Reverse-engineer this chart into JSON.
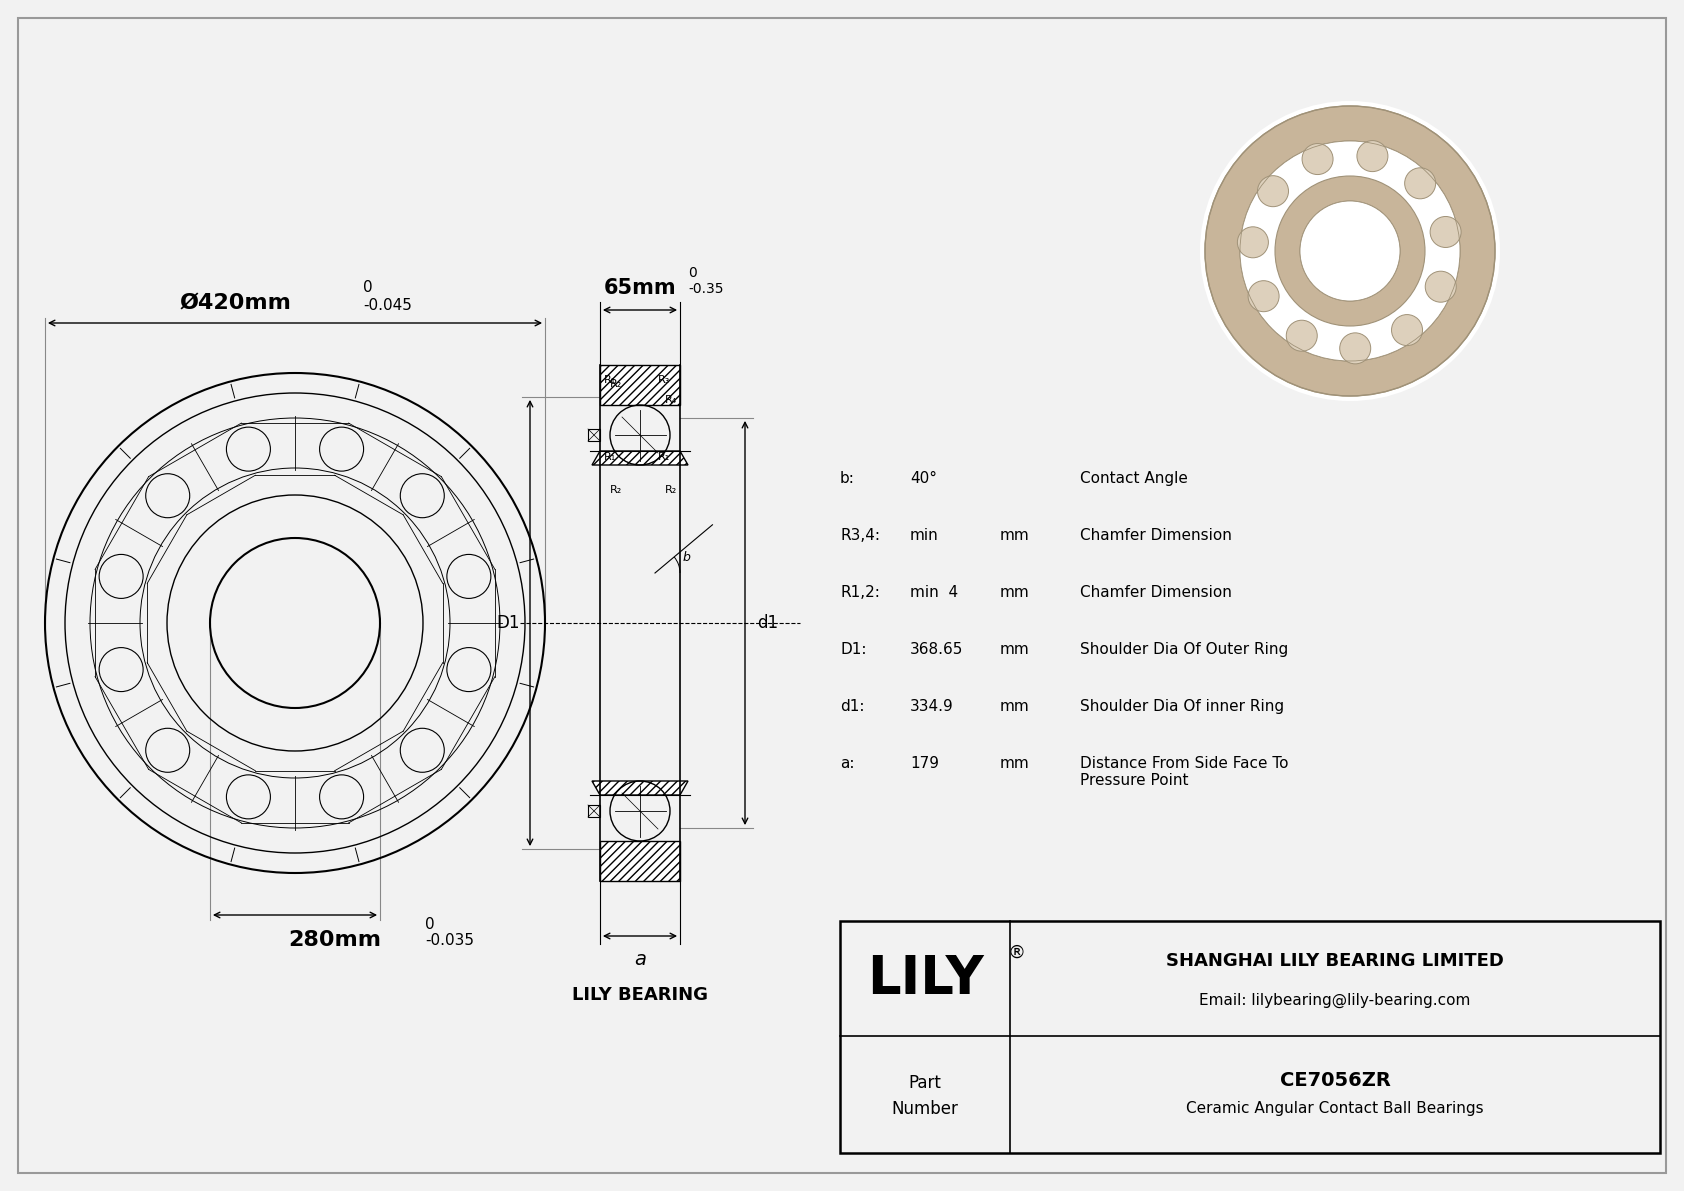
{
  "bg_color": "#f2f2f2",
  "line_color": "#000000",
  "part_number": "CE7056ZR",
  "part_type": "Ceramic Angular Contact Ball Bearings",
  "company": "SHANGHAI LILY BEARING LIMITED",
  "email": "Email: lilybearing@lily-bearing.com",
  "lily_label": "LILY BEARING",
  "outer_dia_label": "Ø420mm",
  "outer_dia_tol_upper": "0",
  "outer_dia_tol_lower": "-0.045",
  "inner_dia_label": "280mm",
  "inner_dia_tol_upper": "0",
  "inner_dia_tol_lower": "-0.035",
  "width_label": "65mm",
  "width_tol_upper": "0",
  "width_tol_lower": "-0.35",
  "params": [
    {
      "symbol": "b:",
      "value": "40°",
      "unit": "",
      "desc": "Contact Angle"
    },
    {
      "symbol": "R3,4:",
      "value": "min",
      "unit": "mm",
      "desc": "Chamfer Dimension"
    },
    {
      "symbol": "R1,2:",
      "value": "min  4",
      "unit": "mm",
      "desc": "Chamfer Dimension"
    },
    {
      "symbol": "D1:",
      "value": "368.65",
      "unit": "mm",
      "desc": "Shoulder Dia Of Outer Ring"
    },
    {
      "symbol": "d1:",
      "value": "334.9",
      "unit": "mm",
      "desc": "Shoulder Dia Of inner Ring"
    },
    {
      "symbol": "a:",
      "value": "179",
      "unit": "mm",
      "desc": "Distance From Side Face To\nPressure Point"
    }
  ]
}
